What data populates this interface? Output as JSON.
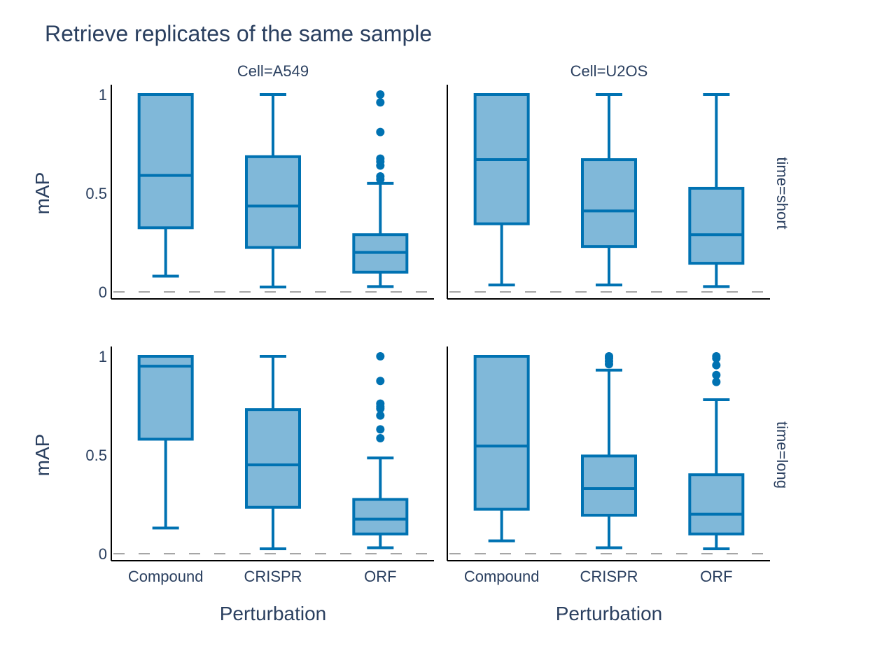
{
  "chart_data": {
    "type": "box",
    "title": "Retrieve replicates of the same sample",
    "xlabel": "Perturbation",
    "ylabel": "mAP",
    "categories": [
      "Compound",
      "CRISPR",
      "ORF"
    ],
    "ylim": [
      0,
      1
    ],
    "yticks": [
      0,
      0.5,
      1
    ],
    "ytick_labels": [
      "0",
      "0.5",
      "1"
    ],
    "reference_line": 0,
    "grid": false,
    "colors": {
      "line": "#0072b2",
      "fill": "#80b8d9",
      "reference": "#888888",
      "axis": "#000000"
    },
    "col_facets": [
      "Cell=A549",
      "Cell=U2OS"
    ],
    "row_facets": [
      "time=short",
      "time=long"
    ],
    "panels": [
      {
        "row": 0,
        "col": 0,
        "boxes": [
          {
            "category": "Compound",
            "q1": 0.325,
            "median": 0.59,
            "q3": 1.0,
            "lower": 0.08,
            "upper": 1.0,
            "outliers": []
          },
          {
            "category": "CRISPR",
            "q1": 0.225,
            "median": 0.435,
            "q3": 0.685,
            "lower": 0.025,
            "upper": 1.0,
            "outliers": []
          },
          {
            "category": "ORF",
            "q1": 0.1,
            "median": 0.2,
            "q3": 0.29,
            "lower": 0.027,
            "upper": 0.55,
            "outliers": [
              0.57,
              0.585,
              0.64,
              0.66,
              0.675,
              0.81,
              0.96,
              1.0
            ]
          }
        ]
      },
      {
        "row": 0,
        "col": 1,
        "boxes": [
          {
            "category": "Compound",
            "q1": 0.345,
            "median": 0.67,
            "q3": 1.0,
            "lower": 0.035,
            "upper": 1.0,
            "outliers": []
          },
          {
            "category": "CRISPR",
            "q1": 0.23,
            "median": 0.41,
            "q3": 0.67,
            "lower": 0.035,
            "upper": 1.0,
            "outliers": []
          },
          {
            "category": "ORF",
            "q1": 0.145,
            "median": 0.29,
            "q3": 0.525,
            "lower": 0.027,
            "upper": 1.0,
            "outliers": []
          }
        ]
      },
      {
        "row": 1,
        "col": 0,
        "boxes": [
          {
            "category": "Compound",
            "q1": 0.58,
            "median": 0.95,
            "q3": 1.0,
            "lower": 0.13,
            "upper": 1.0,
            "outliers": []
          },
          {
            "category": "CRISPR",
            "q1": 0.235,
            "median": 0.45,
            "q3": 0.73,
            "lower": 0.025,
            "upper": 1.0,
            "outliers": []
          },
          {
            "category": "ORF",
            "q1": 0.1,
            "median": 0.175,
            "q3": 0.275,
            "lower": 0.03,
            "upper": 0.485,
            "outliers": [
              0.585,
              0.63,
              0.7,
              0.735,
              0.745,
              0.76,
              0.875,
              1.0
            ]
          }
        ]
      },
      {
        "row": 1,
        "col": 1,
        "boxes": [
          {
            "category": "Compound",
            "q1": 0.225,
            "median": 0.545,
            "q3": 1.0,
            "lower": 0.065,
            "upper": 1.0,
            "outliers": []
          },
          {
            "category": "CRISPR",
            "q1": 0.195,
            "median": 0.33,
            "q3": 0.495,
            "lower": 0.03,
            "upper": 0.93,
            "outliers": [
              0.96,
              0.975,
              0.99,
              1.0
            ]
          },
          {
            "category": "ORF",
            "q1": 0.1,
            "median": 0.2,
            "q3": 0.4,
            "lower": 0.025,
            "upper": 0.78,
            "outliers": [
              0.87,
              0.905,
              0.955,
              0.99,
              1.0
            ]
          }
        ]
      }
    ]
  }
}
